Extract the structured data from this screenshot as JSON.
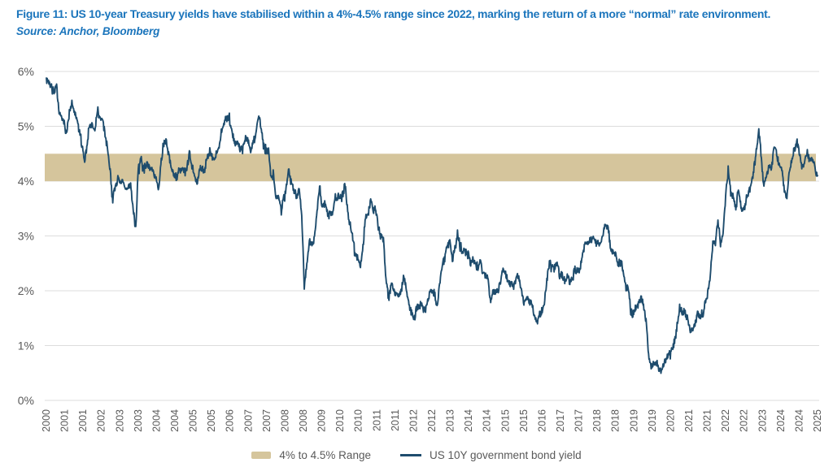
{
  "header": {
    "title": "Figure 11: US 10-year Treasury yields have stabilised within a 4%-4.5% range since 2022, marking the return of a more “normal” rate environment.",
    "source": "Source: Anchor, Bloomberg"
  },
  "legend": {
    "range_label": "4% to 4.5% Range",
    "line_label": "US 10Y government bond yield"
  },
  "colors": {
    "title_blue": "#1B75BC",
    "line_navy": "#1E4C6D",
    "band_tan": "#D5C59C",
    "axis_text": "#595959",
    "gridline": "#DCDCDC"
  },
  "chart_data": {
    "type": "line",
    "title": "US 10-year Treasury yield, 2000-2025",
    "xlabel": "",
    "ylabel": "",
    "ylim": [
      0,
      6
    ],
    "grid": true,
    "legend_position": "bottom",
    "y_ticks": [
      {
        "value": 6,
        "label": "6%"
      },
      {
        "value": 5,
        "label": "5%"
      },
      {
        "value": 4,
        "label": "4%"
      },
      {
        "value": 3,
        "label": "3%"
      },
      {
        "value": 2,
        "label": "2%"
      },
      {
        "value": 1,
        "label": "1%"
      },
      {
        "value": 0,
        "label": "0%"
      }
    ],
    "x_tick_labels": [
      "2000",
      "2001",
      "2001",
      "2002",
      "2003",
      "2003",
      "2004",
      "2004",
      "2005",
      "2005",
      "2006",
      "2007",
      "2007",
      "2008",
      "2008",
      "2009",
      "2010",
      "2010",
      "2011",
      "2011",
      "2012",
      "2012",
      "2013",
      "2014",
      "2014",
      "2015",
      "2015",
      "2016",
      "2017",
      "2017",
      "2018",
      "2018",
      "2019",
      "2019",
      "2020",
      "2021",
      "2021",
      "2022",
      "2022",
      "2023",
      "2024",
      "2024",
      "2025"
    ],
    "band": {
      "from": 4.0,
      "to": 4.5,
      "label": "4% to 4.5% Range"
    },
    "series": [
      {
        "name": "US 10Y government bond yield",
        "start_year_fraction": 2000.5,
        "step_months": 1,
        "unit": "percent",
        "values": [
          5.88,
          5.8,
          5.72,
          5.66,
          5.7,
          5.2,
          5.15,
          5.05,
          4.9,
          5.25,
          5.4,
          5.25,
          5.1,
          4.9,
          4.65,
          4.35,
          4.7,
          5.05,
          5.0,
          4.9,
          5.3,
          5.15,
          5.1,
          4.85,
          4.55,
          4.2,
          3.65,
          3.9,
          4.05,
          3.95,
          4.0,
          3.85,
          3.9,
          3.95,
          3.45,
          3.15,
          4.2,
          4.45,
          4.2,
          4.3,
          4.3,
          4.25,
          4.1,
          4.05,
          3.85,
          4.4,
          4.7,
          4.7,
          4.45,
          4.25,
          4.1,
          4.05,
          4.2,
          4.22,
          4.15,
          4.2,
          4.5,
          4.3,
          4.1,
          3.95,
          4.2,
          4.25,
          4.2,
          4.45,
          4.55,
          4.45,
          4.4,
          4.55,
          4.75,
          5.0,
          5.1,
          5.2,
          5.05,
          4.85,
          4.65,
          4.75,
          4.58,
          4.6,
          4.8,
          4.7,
          4.55,
          4.7,
          4.85,
          5.2,
          5.0,
          4.65,
          4.55,
          4.55,
          4.1,
          4.1,
          3.7,
          3.7,
          3.45,
          3.7,
          3.9,
          4.2,
          4.0,
          3.85,
          3.7,
          3.9,
          3.4,
          2.1,
          2.5,
          2.9,
          2.8,
          3.0,
          3.45,
          3.9,
          3.55,
          3.6,
          3.4,
          3.4,
          3.4,
          3.7,
          3.7,
          3.7,
          3.75,
          3.95,
          3.4,
          3.2,
          2.95,
          2.65,
          2.6,
          2.45,
          2.8,
          3.35,
          3.4,
          3.7,
          3.45,
          3.5,
          3.15,
          3.0,
          2.95,
          2.2,
          1.85,
          2.15,
          2.0,
          1.9,
          1.95,
          2.0,
          2.25,
          2.0,
          1.75,
          1.6,
          1.45,
          1.7,
          1.7,
          1.75,
          1.62,
          1.75,
          1.95,
          2.0,
          1.95,
          1.7,
          2.1,
          2.5,
          2.6,
          2.85,
          2.9,
          2.6,
          2.75,
          3.0,
          2.8,
          2.7,
          2.7,
          2.7,
          2.5,
          2.6,
          2.5,
          2.4,
          2.55,
          2.3,
          2.3,
          2.2,
          1.8,
          2.0,
          2.0,
          1.95,
          2.25,
          2.4,
          2.3,
          2.15,
          2.15,
          2.05,
          2.25,
          2.25,
          2.05,
          1.75,
          1.9,
          1.8,
          1.8,
          1.55,
          1.4,
          1.55,
          1.62,
          1.78,
          2.2,
          2.5,
          2.45,
          2.4,
          2.5,
          2.28,
          2.28,
          2.18,
          2.3,
          2.18,
          2.22,
          2.38,
          2.35,
          2.42,
          2.65,
          2.88,
          2.82,
          2.92,
          3.0,
          2.9,
          2.9,
          2.88,
          3.05,
          3.18,
          3.15,
          2.75,
          2.7,
          2.66,
          2.5,
          2.52,
          2.35,
          2.05,
          2.05,
          1.55,
          1.6,
          1.7,
          1.8,
          1.88,
          1.7,
          1.4,
          0.7,
          0.62,
          0.66,
          0.7,
          0.55,
          0.56,
          0.68,
          0.8,
          0.86,
          0.92,
          1.08,
          1.35,
          1.7,
          1.6,
          1.6,
          1.48,
          1.28,
          1.3,
          1.4,
          1.58,
          1.55,
          1.48,
          1.8,
          1.95,
          2.3,
          2.85,
          2.9,
          3.3,
          2.85,
          3.0,
          3.75,
          4.2,
          3.8,
          3.7,
          3.5,
          3.85,
          3.55,
          3.45,
          3.65,
          3.8,
          3.95,
          4.2,
          4.55,
          4.95,
          4.4,
          3.9,
          4.1,
          4.25,
          4.25,
          4.65,
          4.45,
          4.3,
          4.2,
          3.85,
          3.7,
          4.2,
          4.4,
          4.55,
          4.75,
          4.45,
          4.25,
          4.35,
          4.5,
          4.4,
          4.4,
          4.25,
          4.1
        ]
      }
    ]
  }
}
